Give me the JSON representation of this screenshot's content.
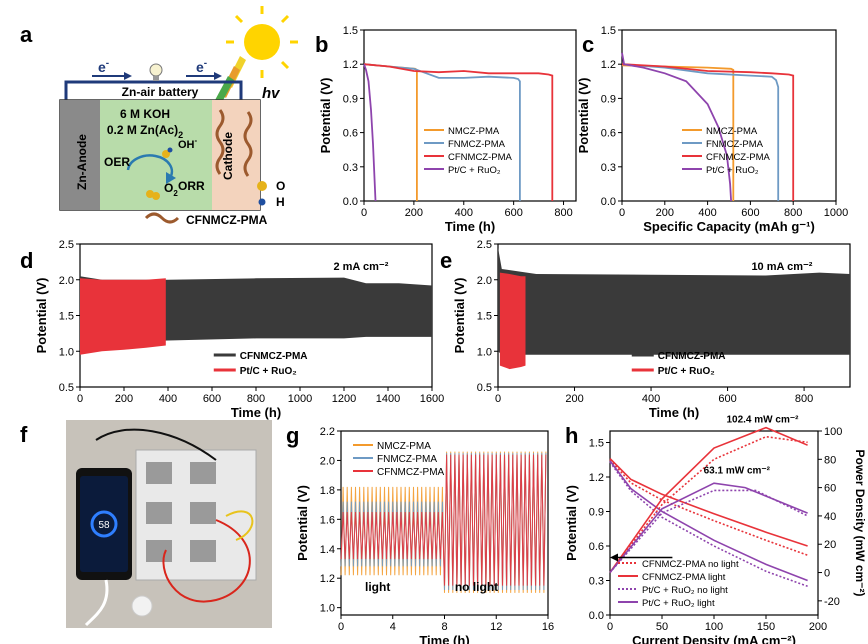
{
  "panel_letters": {
    "a": "a",
    "b": "b",
    "c": "c",
    "d": "d",
    "e": "e",
    "f": "f",
    "g": "g",
    "h": "h"
  },
  "schematic": {
    "battery_label": "Zn-air battery",
    "electron": "e",
    "electron_sup": "-",
    "hv": "hv",
    "electrolyte_line1": "6 M KOH",
    "electrolyte_line2": "0.2 M Zn(Ac)",
    "electrolyte_sub": "2",
    "anode": "Zn-Anode",
    "cathode": "Cathode",
    "oer": "OER",
    "orr": "ORR",
    "oh": "OH",
    "oh_sup": "-",
    "o2": "O",
    "o2_sub": "2",
    "legend_o": "O",
    "legend_h": "H",
    "material": "CFNMCZ-PMA"
  },
  "photo": {
    "phone_text": "58"
  },
  "colors": {
    "nmcz": "#f39a2c",
    "fnmcz": "#6e9ac4",
    "cfnmcz": "#e8333a",
    "ptc": "#8e44ad",
    "dark": "#3a3a3a",
    "schem_green": "#b8dcaa",
    "schem_gray": "#8a8a8a",
    "schem_cathode": "#f3d3bd"
  },
  "chart_data": [
    {
      "id": "b",
      "type": "line",
      "xlabel": "Time (h)",
      "ylabel": "Potential (V)",
      "xlim": [
        0,
        850
      ],
      "ylim": [
        0,
        1.5
      ],
      "xticks": [
        "0",
        "200",
        "400",
        "600",
        "800"
      ],
      "yticks": [
        "0.0",
        "0.3",
        "0.6",
        "0.9",
        "1.2",
        "1.5"
      ],
      "series": [
        {
          "name": "NMCZ-PMA",
          "x": [
            0,
            100,
            205,
            212,
            212
          ],
          "y": [
            1.2,
            1.18,
            1.16,
            1.15,
            0
          ]
        },
        {
          "name": "FNMCZ-PMA",
          "x": [
            0,
            100,
            200,
            250,
            300,
            400,
            500,
            600,
            618,
            625,
            625
          ],
          "y": [
            1.2,
            1.18,
            1.16,
            1.12,
            1.08,
            1.08,
            1.09,
            1.08,
            1.07,
            1.05,
            0
          ]
        },
        {
          "name": "CFNMCZ-PMA",
          "x": [
            0,
            100,
            200,
            300,
            400,
            500,
            600,
            700,
            740,
            755,
            755
          ],
          "y": [
            1.2,
            1.18,
            1.14,
            1.13,
            1.14,
            1.12,
            1.12,
            1.12,
            1.11,
            1.1,
            0
          ]
        },
        {
          "name": "Pt/C + RuO₂",
          "x": [
            0,
            8,
            18,
            28,
            36,
            42,
            46
          ],
          "y": [
            1.2,
            1.15,
            1.05,
            0.8,
            0.5,
            0.2,
            0
          ]
        }
      ],
      "legend": [
        "NMCZ-PMA",
        "FNMCZ-PMA",
        "CFNMCZ-PMA",
        "Pt/C + RuO₂"
      ]
    },
    {
      "id": "c",
      "type": "line",
      "xlabel": "Specific Capacity (mAh g⁻¹)",
      "ylabel": "Potential (V)",
      "xlim": [
        0,
        1000
      ],
      "ylim": [
        0,
        1.5
      ],
      "xticks": [
        "0",
        "200",
        "400",
        "600",
        "800",
        "1000"
      ],
      "yticks": [
        "0.0",
        "0.3",
        "0.6",
        "0.9",
        "1.2",
        "1.5"
      ],
      "series": [
        {
          "name": "NMCZ-PMA",
          "x": [
            0,
            200,
            400,
            510,
            520,
            520
          ],
          "y": [
            1.19,
            1.18,
            1.17,
            1.16,
            1.15,
            0
          ]
        },
        {
          "name": "FNMCZ-PMA",
          "x": [
            0,
            200,
            400,
            600,
            700,
            720,
            730,
            730
          ],
          "y": [
            1.2,
            1.17,
            1.12,
            1.1,
            1.09,
            1.06,
            1.0,
            0
          ]
        },
        {
          "name": "CFNMCZ-PMA",
          "x": [
            0,
            200,
            400,
            600,
            700,
            780,
            800,
            800
          ],
          "y": [
            1.2,
            1.18,
            1.14,
            1.13,
            1.12,
            1.11,
            1.1,
            0
          ]
        },
        {
          "name": "Pt/C + RuO₂",
          "x": [
            0,
            10,
            100,
            200,
            300,
            400,
            450,
            490,
            505,
            510
          ],
          "y": [
            1.3,
            1.2,
            1.17,
            1.12,
            1.05,
            0.85,
            0.65,
            0.4,
            0.15,
            0
          ]
        }
      ],
      "legend": [
        "NMCZ-PMA",
        "FNMCZ-PMA",
        "CFNMCZ-PMA",
        "Pt/C + RuO₂"
      ]
    },
    {
      "id": "d",
      "type": "band",
      "xlabel": "Time (h)",
      "ylabel": "Potential (V)",
      "xlim": [
        0,
        1600
      ],
      "ylim": [
        0.5,
        2.5
      ],
      "xticks": [
        "0",
        "200",
        "400",
        "600",
        "800",
        "1000",
        "1200",
        "1400",
        "1600"
      ],
      "yticks": [
        "0.5",
        "1.0",
        "1.5",
        "2.0",
        "2.5"
      ],
      "annotation": "2 mA cm⁻²",
      "series": [
        {
          "name": "CFNMCZ-PMA",
          "x": [
            0,
            100,
            400,
            800,
            1200,
            1300,
            1450,
            1600
          ],
          "upper": [
            2.05,
            2.0,
            2.0,
            2.02,
            2.03,
            1.95,
            1.95,
            1.92
          ],
          "lower": [
            1.05,
            1.12,
            1.15,
            1.18,
            1.18,
            1.2,
            1.2,
            1.2
          ]
        },
        {
          "name": "Pt/C + RuO₂",
          "x": [
            0,
            100,
            200,
            300,
            390
          ],
          "upper": [
            2.02,
            2.0,
            2.0,
            2.0,
            2.02
          ],
          "lower": [
            0.95,
            1.0,
            1.02,
            1.05,
            1.08
          ]
        }
      ],
      "legend": [
        "CFNMCZ-PMA",
        "Pt/C + RuO₂"
      ]
    },
    {
      "id": "e",
      "type": "band",
      "xlabel": "Time (h)",
      "ylabel": "Potential (V)",
      "xlim": [
        0,
        920
      ],
      "ylim": [
        0.5,
        2.5
      ],
      "xticks": [
        "0",
        "200",
        "400",
        "600",
        "800"
      ],
      "yticks": [
        "0.5",
        "1.0",
        "1.5",
        "2.0",
        "2.5"
      ],
      "annotation": "10 mA cm⁻²",
      "series": [
        {
          "name": "CFNMCZ-PMA",
          "x": [
            0,
            10,
            100,
            400,
            700,
            840,
            920
          ],
          "upper": [
            2.45,
            2.15,
            2.08,
            2.07,
            2.06,
            2.1,
            2.08
          ],
          "lower": [
            1.0,
            0.95,
            0.95,
            0.95,
            0.95,
            0.95,
            0.95
          ]
        },
        {
          "name": "Pt/C + RuO₂",
          "x": [
            5,
            30,
            60,
            72
          ],
          "upper": [
            2.1,
            2.08,
            2.05,
            2.05
          ],
          "lower": [
            0.8,
            0.75,
            0.78,
            0.8
          ]
        }
      ],
      "legend": [
        "CFNMCZ-PMA",
        "Pt/C + RuO₂"
      ]
    },
    {
      "id": "g",
      "type": "oscillation",
      "xlabel": "Time (h)",
      "ylabel": "Potential (V)",
      "xlim": [
        0,
        16
      ],
      "ylim": [
        0.95,
        2.2
      ],
      "xticks": [
        "0",
        "4",
        "8",
        "12",
        "16"
      ],
      "yticks": [
        "1.0",
        "1.2",
        "1.4",
        "1.6",
        "1.8",
        "2.0",
        "2.2"
      ],
      "annotations": [
        "light",
        "no light"
      ],
      "switch_time": 8,
      "series": [
        {
          "name": "NMCZ-PMA",
          "light_range": [
            1.22,
            1.82
          ],
          "dark_range": [
            1.1,
            2.06
          ]
        },
        {
          "name": "FNMCZ-PMA",
          "light_range": [
            1.28,
            1.72
          ],
          "dark_range": [
            1.12,
            2.05
          ]
        },
        {
          "name": "CFNMCZ-PMA",
          "light_range": [
            1.33,
            1.65
          ],
          "dark_range": [
            1.15,
            2.04
          ]
        }
      ],
      "legend": [
        "NMCZ-PMA",
        "FNMCZ-PMA",
        "CFNMCZ-PMA"
      ]
    },
    {
      "id": "h",
      "type": "polarization",
      "xlabel": "Current Density (mA cm⁻²)",
      "ylabel": "Potential (V)",
      "y2label": "Power Density (mW cm⁻²)",
      "xlim": [
        0,
        200
      ],
      "ylim": [
        0,
        1.6
      ],
      "y2lim": [
        -30,
        100
      ],
      "xticks": [
        "0",
        "50",
        "100",
        "150",
        "200"
      ],
      "yticks": [
        "0.0",
        "0.3",
        "0.6",
        "0.9",
        "1.2",
        "1.5"
      ],
      "y2ticks": [
        "-20",
        "0",
        "20",
        "40",
        "60",
        "80",
        "100"
      ],
      "annotations": [
        "102.4 mW cm⁻²",
        "63.1 mW cm⁻²"
      ],
      "voltage": [
        {
          "name": "CFNMCZ-PMA no light",
          "style": "dotted",
          "color": "cfnmcz",
          "x": [
            0,
            20,
            50,
            100,
            150,
            190
          ],
          "y": [
            1.35,
            1.15,
            1.0,
            0.82,
            0.65,
            0.52
          ]
        },
        {
          "name": "CFNMCZ-PMA light",
          "style": "solid",
          "color": "cfnmcz",
          "x": [
            0,
            20,
            50,
            100,
            150,
            190
          ],
          "y": [
            1.36,
            1.18,
            1.05,
            0.88,
            0.72,
            0.6
          ]
        },
        {
          "name": "Pt/C + RuO₂ no light",
          "style": "dotted",
          "color": "ptc",
          "x": [
            0,
            20,
            50,
            100,
            150,
            190
          ],
          "y": [
            1.33,
            1.08,
            0.85,
            0.6,
            0.38,
            0.25
          ]
        },
        {
          "name": "Pt/C + RuO₂ light",
          "style": "solid",
          "color": "ptc",
          "x": [
            0,
            20,
            50,
            100,
            150,
            190
          ],
          "y": [
            1.34,
            1.1,
            0.9,
            0.65,
            0.44,
            0.3
          ]
        }
      ],
      "power": [
        {
          "name": "CFNMCZ-PMA no light",
          "style": "dotted",
          "color": "cfnmcz",
          "x": [
            0,
            50,
            100,
            150,
            190
          ],
          "y": [
            0,
            48,
            80,
            96,
            92
          ]
        },
        {
          "name": "CFNMCZ-PMA light",
          "style": "solid",
          "color": "cfnmcz",
          "x": [
            0,
            50,
            100,
            150,
            190
          ],
          "y": [
            0,
            52,
            88,
            102.4,
            90
          ]
        },
        {
          "name": "Pt/C + RuO₂ no light",
          "style": "dotted",
          "color": "ptc",
          "x": [
            0,
            50,
            100,
            140,
            190
          ],
          "y": [
            0,
            42,
            58,
            58,
            40
          ]
        },
        {
          "name": "Pt/C + RuO₂ light",
          "style": "solid",
          "color": "ptc",
          "x": [
            0,
            50,
            100,
            130,
            190
          ],
          "y": [
            0,
            45,
            63.1,
            60,
            42
          ]
        }
      ],
      "legend": [
        "CFNMCZ-PMA no light",
        "CFNMCZ-PMA light",
        "Pt/C + RuO₂ no light",
        "Pt/C + RuO₂ light"
      ]
    }
  ]
}
